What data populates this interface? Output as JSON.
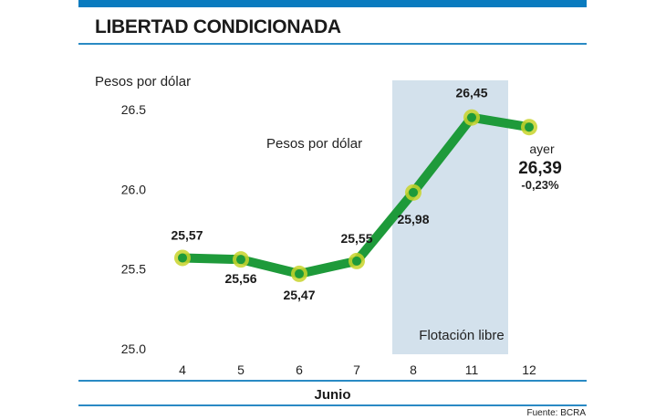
{
  "title": "LIBERTAD CONDICIONADA",
  "source": "Fuente: BCRA",
  "chart_data": {
    "type": "line",
    "ylabel": "Pesos por dólar",
    "series_label": "Pesos por dólar",
    "xlabel": "Junio",
    "categories": [
      "4",
      "5",
      "6",
      "7",
      "8",
      "11",
      "12"
    ],
    "values": [
      25.57,
      25.56,
      25.47,
      25.55,
      25.98,
      26.45,
      26.39
    ],
    "value_labels": [
      "25,57",
      "25,56",
      "25,47",
      "25,55",
      "25,98",
      "26,45",
      "26,39"
    ],
    "yticks": [
      "25.0",
      "25.5",
      "26.0",
      "26.5"
    ],
    "ylim": [
      25.0,
      26.5
    ],
    "shaded_region": {
      "from": "8",
      "to": "11",
      "label": "Flotación libre"
    },
    "last_annotation": {
      "label": "ayer",
      "value": "26,39",
      "change": "-0,23%"
    },
    "line_color": "#1e9a3a",
    "marker_color": "#c8d42a",
    "shade_color": "#d3e1ec",
    "grid": false
  }
}
